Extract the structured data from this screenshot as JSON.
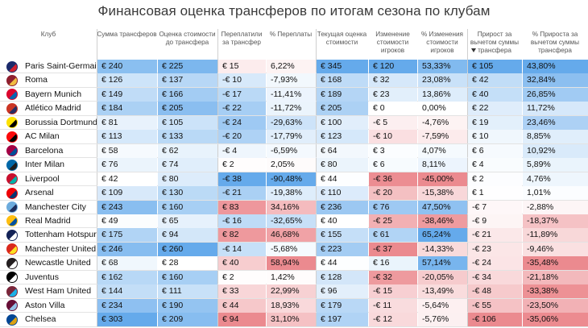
{
  "title": "Финансовая оценка трансферов по итогам сезона по клубам",
  "columns": [
    {
      "key": "club",
      "label": "Клуб"
    },
    {
      "key": "spent",
      "label": "Сумма трансферов"
    },
    {
      "key": "valued",
      "label": "Оценка стоимости до трансфера"
    },
    {
      "key": "overpaid",
      "label": "Переплатили за трансфер"
    },
    {
      "key": "overpaid_pct",
      "label": "% Переплаты"
    },
    {
      "key": "current",
      "label": "Текущая оценка стоимости"
    },
    {
      "key": "change",
      "label": "Изменение стоимости игроков"
    },
    {
      "key": "change_pct",
      "label": "% Изменения стоимости игроков"
    },
    {
      "key": "gain",
      "label": "Прирост за вычетом суммы трансфера"
    },
    {
      "key": "gain_pct",
      "label": "% Прироста за вычетом суммы трансфера"
    }
  ],
  "sort": {
    "column": "gain",
    "direction": "descending"
  },
  "colors": {
    "blue": "#4a9be8",
    "red": "#e8757b",
    "header_text": "#555555"
  },
  "chart_data": {
    "type": "table",
    "rows": [
      {
        "club": "Paris Saint-Germain",
        "logo": "psg-logo",
        "spent": "€ 240",
        "valued": "€ 225",
        "overpaid": "€ 15",
        "overpaid_pct": "6,22%",
        "current": "€ 345",
        "change": "€ 120",
        "change_pct": "53,33%",
        "gain": "€ 105",
        "gain_pct": "43,80%",
        "v": [
          240,
          225,
          15,
          6.22,
          345,
          120,
          53.33,
          105,
          43.8
        ]
      },
      {
        "club": "Roma",
        "logo": "roma-logo",
        "spent": "€ 126",
        "valued": "€ 137",
        "overpaid": "-€ 10",
        "overpaid_pct": "-7,93%",
        "current": "€ 168",
        "change": "€ 32",
        "change_pct": "23,08%",
        "gain": "€ 42",
        "gain_pct": "32,84%",
        "v": [
          126,
          137,
          -10,
          -7.93,
          168,
          32,
          23.08,
          42,
          32.84
        ]
      },
      {
        "club": "Bayern Munich",
        "logo": "bayern-logo",
        "spent": "€ 149",
        "valued": "€ 166",
        "overpaid": "-€ 17",
        "overpaid_pct": "-11,41%",
        "current": "€ 189",
        "change": "€ 23",
        "change_pct": "13,86%",
        "gain": "€ 40",
        "gain_pct": "26,85%",
        "v": [
          149,
          166,
          -17,
          -11.41,
          189,
          23,
          13.86,
          40,
          26.85
        ]
      },
      {
        "club": "Atlético Madrid",
        "logo": "atletico-logo",
        "spent": "€ 184",
        "valued": "€ 205",
        "overpaid": "-€ 22",
        "overpaid_pct": "-11,72%",
        "current": "€ 205",
        "change": "€ 0",
        "change_pct": "0,00%",
        "gain": "€ 22",
        "gain_pct": "11,72%",
        "v": [
          184,
          205,
          -22,
          -11.72,
          205,
          0,
          0,
          22,
          11.72
        ]
      },
      {
        "club": "Borussia Dortmund",
        "logo": "dortmund-logo",
        "spent": "€ 81",
        "valued": "€ 105",
        "overpaid": "-€ 24",
        "overpaid_pct": "-29,63%",
        "current": "€ 100",
        "change": "-€ 5",
        "change_pct": "-4,76%",
        "gain": "€ 19",
        "gain_pct": "23,46%",
        "v": [
          81,
          105,
          -24,
          -29.63,
          100,
          -5,
          -4.76,
          19,
          23.46
        ]
      },
      {
        "club": "AC Milan",
        "logo": "milan-logo",
        "spent": "€ 113",
        "valued": "€ 133",
        "overpaid": "-€ 20",
        "overpaid_pct": "-17,79%",
        "current": "€ 123",
        "change": "-€ 10",
        "change_pct": "-7,59%",
        "gain": "€ 10",
        "gain_pct": "8,85%",
        "v": [
          113,
          133,
          -20,
          -17.79,
          123,
          -10,
          -7.59,
          10,
          8.85
        ]
      },
      {
        "club": "Barcelona",
        "logo": "barcelona-logo",
        "spent": "€ 58",
        "valued": "€ 62",
        "overpaid": "-€ 4",
        "overpaid_pct": "-6,59%",
        "current": "€ 64",
        "change": "€ 3",
        "change_pct": "4,07%",
        "gain": "€ 6",
        "gain_pct": "10,92%",
        "v": [
          58,
          62,
          -4,
          -6.59,
          64,
          3,
          4.07,
          6,
          10.92
        ]
      },
      {
        "club": "Inter Milan",
        "logo": "inter-logo",
        "spent": "€ 76",
        "valued": "€ 74",
        "overpaid": "€ 2",
        "overpaid_pct": "2,05%",
        "current": "€ 80",
        "change": "€ 6",
        "change_pct": "8,11%",
        "gain": "€ 4",
        "gain_pct": "5,89%",
        "v": [
          76,
          74,
          2,
          2.05,
          80,
          6,
          8.11,
          4,
          5.89
        ]
      },
      {
        "club": "Liverpool",
        "logo": "liverpool-logo",
        "spent": "€ 42",
        "valued": "€ 80",
        "overpaid": "-€ 38",
        "overpaid_pct": "-90,48%",
        "current": "€ 44",
        "change": "-€ 36",
        "change_pct": "-45,00%",
        "gain": "€ 2",
        "gain_pct": "4,76%",
        "v": [
          42,
          80,
          -38,
          -90.48,
          44,
          -36,
          -45,
          2,
          4.76
        ]
      },
      {
        "club": "Arsenal",
        "logo": "arsenal-logo",
        "spent": "€ 109",
        "valued": "€ 130",
        "overpaid": "-€ 21",
        "overpaid_pct": "-19,38%",
        "current": "€ 110",
        "change": "-€ 20",
        "change_pct": "-15,38%",
        "gain": "€ 1",
        "gain_pct": "1,01%",
        "v": [
          109,
          130,
          -21,
          -19.38,
          110,
          -20,
          -15.38,
          1,
          1.01
        ]
      },
      {
        "club": "Manchester City",
        "logo": "mancity-logo",
        "spent": "€ 243",
        "valued": "€ 160",
        "overpaid": "€ 83",
        "overpaid_pct": "34,16%",
        "current": "€ 236",
        "change": "€ 76",
        "change_pct": "47,50%",
        "gain": "-€ 7",
        "gain_pct": "-2,88%",
        "v": [
          243,
          160,
          83,
          34.16,
          236,
          76,
          47.5,
          -7,
          -2.88
        ]
      },
      {
        "club": "Real Madrid",
        "logo": "realmadrid-logo",
        "spent": "€ 49",
        "valued": "€ 65",
        "overpaid": "-€ 16",
        "overpaid_pct": "-32,65%",
        "current": "€ 40",
        "change": "-€ 25",
        "change_pct": "-38,46%",
        "gain": "-€ 9",
        "gain_pct": "-18,37%",
        "v": [
          49,
          65,
          -16,
          -32.65,
          40,
          -25,
          -38.46,
          -9,
          -18.37
        ]
      },
      {
        "club": "Tottenham Hotspur",
        "logo": "tottenham-logo",
        "spent": "€ 175",
        "valued": "€ 94",
        "overpaid": "€ 82",
        "overpaid_pct": "46,68%",
        "current": "€ 155",
        "change": "€ 61",
        "change_pct": "65,24%",
        "gain": "-€ 21",
        "gain_pct": "-11,89%",
        "v": [
          175,
          94,
          82,
          46.68,
          155,
          61,
          65.24,
          -21,
          -11.89
        ]
      },
      {
        "club": "Manchester United",
        "logo": "manutd-logo",
        "spent": "€ 246",
        "valued": "€ 260",
        "overpaid": "-€ 14",
        "overpaid_pct": "-5,68%",
        "current": "€ 223",
        "change": "-€ 37",
        "change_pct": "-14,33%",
        "gain": "-€ 23",
        "gain_pct": "-9,46%",
        "v": [
          246,
          260,
          -14,
          -5.68,
          223,
          -37,
          -14.33,
          -23,
          -9.46
        ]
      },
      {
        "club": "Newcastle United",
        "logo": "newcastle-logo",
        "spent": "€ 68",
        "valued": "€ 28",
        "overpaid": "€ 40",
        "overpaid_pct": "58,94%",
        "current": "€ 44",
        "change": "€ 16",
        "change_pct": "57,14%",
        "gain": "-€ 24",
        "gain_pct": "-35,48%",
        "v": [
          68,
          28,
          40,
          58.94,
          44,
          16,
          57.14,
          -24,
          -35.48
        ]
      },
      {
        "club": "Juventus",
        "logo": "juventus-logo",
        "spent": "€ 162",
        "valued": "€ 160",
        "overpaid": "€ 2",
        "overpaid_pct": "1,42%",
        "current": "€ 128",
        "change": "-€ 32",
        "change_pct": "-20,05%",
        "gain": "-€ 34",
        "gain_pct": "-21,18%",
        "v": [
          162,
          160,
          2,
          1.42,
          128,
          -32,
          -20.05,
          -34,
          -21.18
        ]
      },
      {
        "club": "West Ham United",
        "logo": "westham-logo",
        "spent": "€ 144",
        "valued": "€ 111",
        "overpaid": "€ 33",
        "overpaid_pct": "22,99%",
        "current": "€ 96",
        "change": "-€ 15",
        "change_pct": "-13,49%",
        "gain": "-€ 48",
        "gain_pct": "-33,38%",
        "v": [
          144,
          111,
          33,
          22.99,
          96,
          -15,
          -13.49,
          -48,
          -33.38
        ]
      },
      {
        "club": "Aston Villa",
        "logo": "astonvilla-logo",
        "spent": "€ 234",
        "valued": "€ 190",
        "overpaid": "€ 44",
        "overpaid_pct": "18,93%",
        "current": "€ 179",
        "change": "-€ 11",
        "change_pct": "-5,64%",
        "gain": "-€ 55",
        "gain_pct": "-23,50%",
        "v": [
          234,
          190,
          44,
          18.93,
          179,
          -11,
          -5.64,
          -55,
          -23.5
        ]
      },
      {
        "club": "Chelsea",
        "logo": "chelsea-logo",
        "spent": "€ 303",
        "valued": "€ 209",
        "overpaid": "€ 94",
        "overpaid_pct": "31,10%",
        "current": "€ 197",
        "change": "-€ 12",
        "change_pct": "-5,76%",
        "gain": "-€ 106",
        "gain_pct": "-35,06%",
        "v": [
          303,
          209,
          94,
          31.1,
          197,
          -12,
          -5.76,
          -106,
          -35.06
        ]
      }
    ]
  }
}
